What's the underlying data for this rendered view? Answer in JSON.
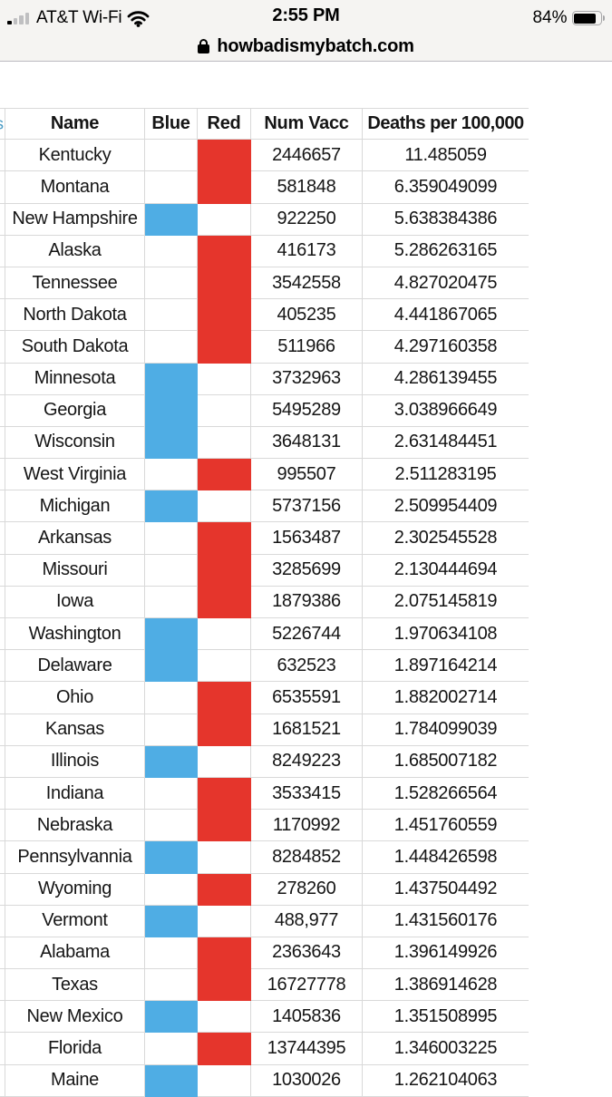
{
  "status_bar": {
    "carrier": "AT&T Wi-Fi",
    "time": "2:55 PM",
    "battery_label": "84%",
    "battery_level": "84%",
    "signal_icon": "signal-bars-icon",
    "wifi_icon": "wifi-icon",
    "battery_icon": "battery-icon"
  },
  "url_bar": {
    "lock_icon": "lock-icon",
    "domain": "howbadismybatch.com"
  },
  "colors": {
    "red_fill": "#e5352c",
    "blue_fill": "#4fade4",
    "gridline": "#d9d9d9"
  },
  "table": {
    "edge_fragment": "s",
    "columns": [
      "Name",
      "Blue",
      "Red",
      "Num Vacc",
      "Deaths per 100,000"
    ],
    "rows": [
      {
        "name": "Kentucky",
        "party": "red",
        "num_vacc": "2446657",
        "deaths_per_100k": "11.485059"
      },
      {
        "name": "Montana",
        "party": "red",
        "num_vacc": "581848",
        "deaths_per_100k": "6.359049099"
      },
      {
        "name": "New Hampshire",
        "party": "blue",
        "num_vacc": "922250",
        "deaths_per_100k": "5.638384386"
      },
      {
        "name": "Alaska",
        "party": "red",
        "num_vacc": "416173",
        "deaths_per_100k": "5.286263165"
      },
      {
        "name": "Tennessee",
        "party": "red",
        "num_vacc": "3542558",
        "deaths_per_100k": "4.827020475"
      },
      {
        "name": "North Dakota",
        "party": "red",
        "num_vacc": "405235",
        "deaths_per_100k": "4.441867065"
      },
      {
        "name": "South Dakota",
        "party": "red",
        "num_vacc": "511966",
        "deaths_per_100k": "4.297160358"
      },
      {
        "name": "Minnesota",
        "party": "blue",
        "num_vacc": "3732963",
        "deaths_per_100k": "4.286139455"
      },
      {
        "name": "Georgia",
        "party": "blue",
        "num_vacc": "5495289",
        "deaths_per_100k": "3.038966649"
      },
      {
        "name": "Wisconsin",
        "party": "blue",
        "num_vacc": "3648131",
        "deaths_per_100k": "2.631484451"
      },
      {
        "name": "West Virginia",
        "party": "red",
        "num_vacc": "995507",
        "deaths_per_100k": "2.511283195"
      },
      {
        "name": "Michigan",
        "party": "blue",
        "num_vacc": "5737156",
        "deaths_per_100k": "2.509954409"
      },
      {
        "name": "Arkansas",
        "party": "red",
        "num_vacc": "1563487",
        "deaths_per_100k": "2.302545528"
      },
      {
        "name": "Missouri",
        "party": "red",
        "num_vacc": "3285699",
        "deaths_per_100k": "2.130444694"
      },
      {
        "name": "Iowa",
        "party": "red",
        "num_vacc": "1879386",
        "deaths_per_100k": "2.075145819"
      },
      {
        "name": "Washington",
        "party": "blue",
        "num_vacc": "5226744",
        "deaths_per_100k": "1.970634108"
      },
      {
        "name": "Delaware",
        "party": "blue",
        "num_vacc": "632523",
        "deaths_per_100k": "1.897164214"
      },
      {
        "name": "Ohio",
        "party": "red",
        "num_vacc": "6535591",
        "deaths_per_100k": "1.882002714"
      },
      {
        "name": "Kansas",
        "party": "red",
        "num_vacc": "1681521",
        "deaths_per_100k": "1.784099039"
      },
      {
        "name": "Illinois",
        "party": "blue",
        "num_vacc": "8249223",
        "deaths_per_100k": "1.685007182"
      },
      {
        "name": "Indiana",
        "party": "red",
        "num_vacc": "3533415",
        "deaths_per_100k": "1.528266564"
      },
      {
        "name": "Nebraska",
        "party": "red",
        "num_vacc": "1170992",
        "deaths_per_100k": "1.451760559"
      },
      {
        "name": "Pennsylvannia",
        "party": "blue",
        "num_vacc": "8284852",
        "deaths_per_100k": "1.448426598"
      },
      {
        "name": "Wyoming",
        "party": "red",
        "num_vacc": "278260",
        "deaths_per_100k": "1.437504492"
      },
      {
        "name": "Vermont",
        "party": "blue",
        "num_vacc": "488,977",
        "deaths_per_100k": "1.431560176"
      },
      {
        "name": "Alabama",
        "party": "red",
        "num_vacc": "2363643",
        "deaths_per_100k": "1.396149926"
      },
      {
        "name": "Texas",
        "party": "red",
        "num_vacc": "16727778",
        "deaths_per_100k": "1.386914628"
      },
      {
        "name": "New Mexico",
        "party": "blue",
        "num_vacc": "1405836",
        "deaths_per_100k": "1.351508995"
      },
      {
        "name": "Florida",
        "party": "red",
        "num_vacc": "13744395",
        "deaths_per_100k": "1.346003225"
      },
      {
        "name": "Maine",
        "party": "blue",
        "num_vacc": "1030026",
        "deaths_per_100k": "1.262104063"
      }
    ]
  }
}
